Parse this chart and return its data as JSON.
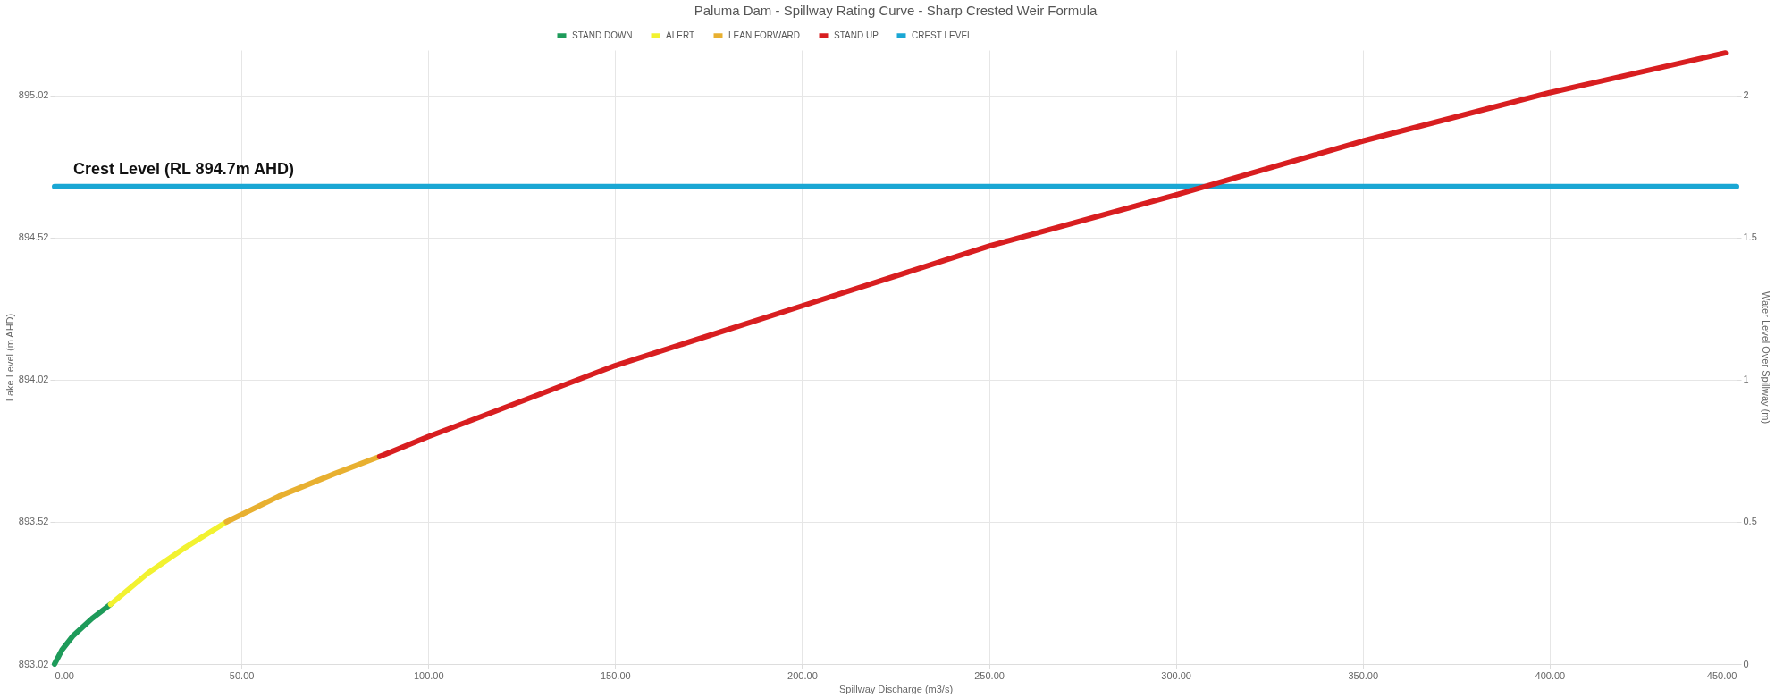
{
  "chart_data": {
    "type": "line",
    "title": "Paluma Dam - Spillway Rating Curve - Sharp Crested Weir Formula",
    "xlabel": "Spillway Discharge (m3/s)",
    "ylabel": "Lake Level  (m AHD)",
    "y2label": "Water Level Over Spillway (m)",
    "xlim": [
      0,
      450
    ],
    "xticks": [
      {
        "value": 0,
        "label": "0.00"
      },
      {
        "value": 50,
        "label": "50.00"
      },
      {
        "value": 100,
        "label": "100.00"
      },
      {
        "value": 150,
        "label": "150.00"
      },
      {
        "value": 200,
        "label": "200.00"
      },
      {
        "value": 250,
        "label": "250.00"
      },
      {
        "value": 300,
        "label": "300.00"
      },
      {
        "value": 350,
        "label": "350.00"
      },
      {
        "value": 400,
        "label": "400.00"
      },
      {
        "value": 450,
        "label": "450.00"
      }
    ],
    "ylim": [
      893.02,
      895.18
    ],
    "yticks": [
      893.02,
      893.52,
      894.02,
      894.52,
      895.02
    ],
    "y2lim": [
      0,
      2.16
    ],
    "y2ticks": [
      0,
      0.5,
      1,
      1.5,
      2
    ],
    "grid": true,
    "legend": "top",
    "annotations": [
      {
        "text": "Crest Level (RL 894.7m AHD)",
        "x": 5,
        "y": 894.7
      }
    ],
    "series": [
      {
        "name": "STAND DOWN",
        "color": "#1e9b5a",
        "axis": "y2",
        "x": [
          0,
          2,
          5,
          10,
          15
        ],
        "values": [
          0,
          0.05,
          0.1,
          0.16,
          0.21
        ]
      },
      {
        "name": "ALERT",
        "color": "#f2f230",
        "axis": "y2",
        "x": [
          15,
          25,
          35,
          46
        ],
        "values": [
          0.21,
          0.32,
          0.41,
          0.5
        ]
      },
      {
        "name": "LEAN FORWARD",
        "color": "#e8b030",
        "axis": "y2",
        "x": [
          46,
          60,
          75,
          87
        ],
        "values": [
          0.5,
          0.59,
          0.67,
          0.73
        ]
      },
      {
        "name": "STAND UP",
        "color": "#d81e20",
        "axis": "y2",
        "x": [
          87,
          100,
          150,
          200,
          250,
          300,
          350,
          400,
          447
        ],
        "values": [
          0.73,
          0.8,
          1.05,
          1.26,
          1.47,
          1.65,
          1.84,
          2.01,
          2.15
        ]
      },
      {
        "name": "CREST LEVEL",
        "color": "#1aa7d4",
        "axis": "y",
        "x": [
          0,
          450
        ],
        "values": [
          894.7,
          894.7
        ]
      }
    ]
  }
}
